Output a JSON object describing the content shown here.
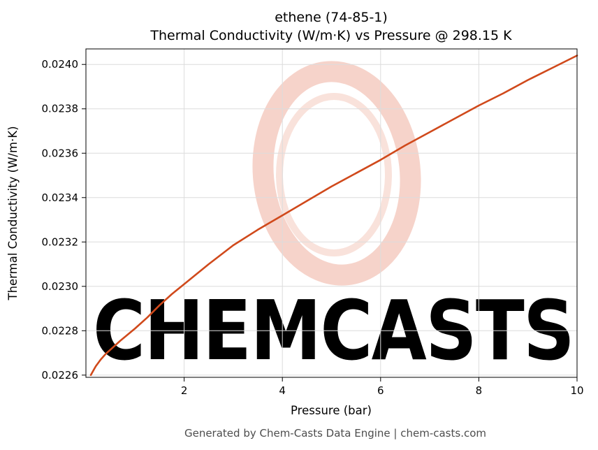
{
  "title_line1": "ethene (74-85-1)",
  "title_line2": "Thermal Conductivity (W/m·K) vs Pressure @ 298.15 K",
  "footer": "Generated by Chem-Casts Data Engine | chem-casts.com",
  "watermark": {
    "text": "CHEMCASTS",
    "color": "#f6d3ca"
  },
  "chart_data": {
    "type": "line",
    "title": "ethene (74-85-1) Thermal Conductivity (W/m·K) vs Pressure @ 298.15 K",
    "xlabel": "Pressure (bar)",
    "ylabel": "Thermal Conductivity (W/m·K)",
    "xlim": [
      0,
      10
    ],
    "ylim": [
      0.02259,
      0.02407
    ],
    "xticks": [
      2,
      4,
      6,
      8,
      10
    ],
    "yticks": [
      0.0226,
      0.0228,
      0.023,
      0.0232,
      0.0234,
      0.0236,
      0.0238,
      0.024
    ],
    "grid": true,
    "legend": "none",
    "line_color": "#d0491b",
    "grid_color": "#dcdcdc",
    "series": [
      {
        "name": "thermal_conductivity_W_per_mK",
        "x": [
          0.1,
          0.15,
          0.2,
          0.3,
          0.4,
          0.5,
          0.7,
          1.0,
          1.25,
          1.5,
          1.75,
          2.0,
          2.5,
          3.0,
          3.5,
          4.0,
          4.5,
          5.0,
          5.5,
          6.0,
          6.5,
          7.0,
          7.5,
          8.0,
          8.5,
          9.0,
          9.5,
          10.0
        ],
        "y": [
          0.0226,
          0.02262,
          0.02264,
          0.02267,
          0.022695,
          0.022715,
          0.022755,
          0.02281,
          0.02286,
          0.022915,
          0.022965,
          0.02301,
          0.0231,
          0.023185,
          0.023255,
          0.02332,
          0.023385,
          0.02345,
          0.02351,
          0.02357,
          0.023635,
          0.023695,
          0.023755,
          0.023815,
          0.02387,
          0.02393,
          0.023985,
          0.02404
        ]
      }
    ]
  }
}
